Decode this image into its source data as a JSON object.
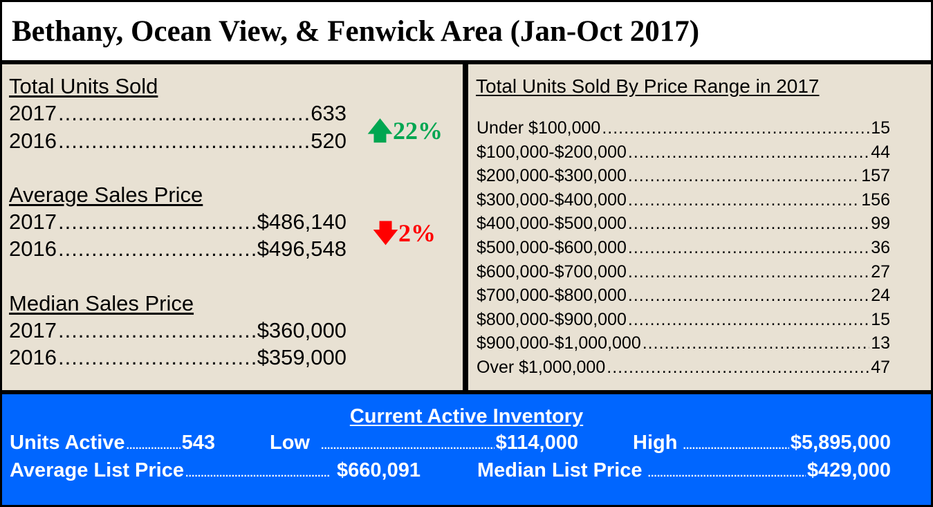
{
  "title": "Bethany, Ocean View, & Fenwick Area (Jan-Oct 2017)",
  "left": {
    "sections": [
      {
        "heading": "Total Units Sold",
        "rows": [
          {
            "label": "2017",
            "value": "633"
          },
          {
            "label": "2016",
            "value": "520"
          }
        ],
        "change": {
          "text": "22%",
          "direction": "up",
          "color": "#00a651"
        }
      },
      {
        "heading": "Average Sales Price",
        "rows": [
          {
            "label": "2017",
            "value": "$486,140"
          },
          {
            "label": "2016",
            "value": "$496,548"
          }
        ],
        "change": {
          "text": "2%",
          "direction": "down",
          "color": "#ff0000"
        }
      },
      {
        "heading": "Median Sales Price",
        "rows": [
          {
            "label": "2017",
            "value": "$360,000"
          },
          {
            "label": "2016",
            "value": "$359,000"
          }
        ]
      }
    ]
  },
  "right": {
    "heading": "Total Units Sold By Price Range in 2017",
    "rows": [
      {
        "label": "Under $100,000",
        "value": "15"
      },
      {
        "label": "$100,000-$200,000",
        "value": "44"
      },
      {
        "label": "$200,000-$300,000",
        "value": "157"
      },
      {
        "label": "$300,000-$400,000",
        "value": "156"
      },
      {
        "label": "$400,000-$500,000",
        "value": "99"
      },
      {
        "label": "$500,000-$600,000",
        "value": "36"
      },
      {
        "label": "$600,000-$700,000",
        "value": "27"
      },
      {
        "label": "$700,000-$800,000",
        "value": "24"
      },
      {
        "label": "$800,000-$900,000",
        "value": "15"
      },
      {
        "label": "$900,000-$1,000,000",
        "value": "13"
      },
      {
        "label": "Over $1,000,000",
        "value": "47"
      }
    ]
  },
  "inventory": {
    "heading": "Current Active Inventory",
    "background": "#0066ff",
    "units_active": {
      "label": "Units Active",
      "value": "543"
    },
    "low": {
      "label": "Low",
      "value": "$114,000"
    },
    "high": {
      "label": "High",
      "value": "$5,895,000"
    },
    "average_list": {
      "label": "Average List Price",
      "value": "$660,091"
    },
    "median_list": {
      "label": "Median List Price",
      "value": "$429,000"
    }
  }
}
